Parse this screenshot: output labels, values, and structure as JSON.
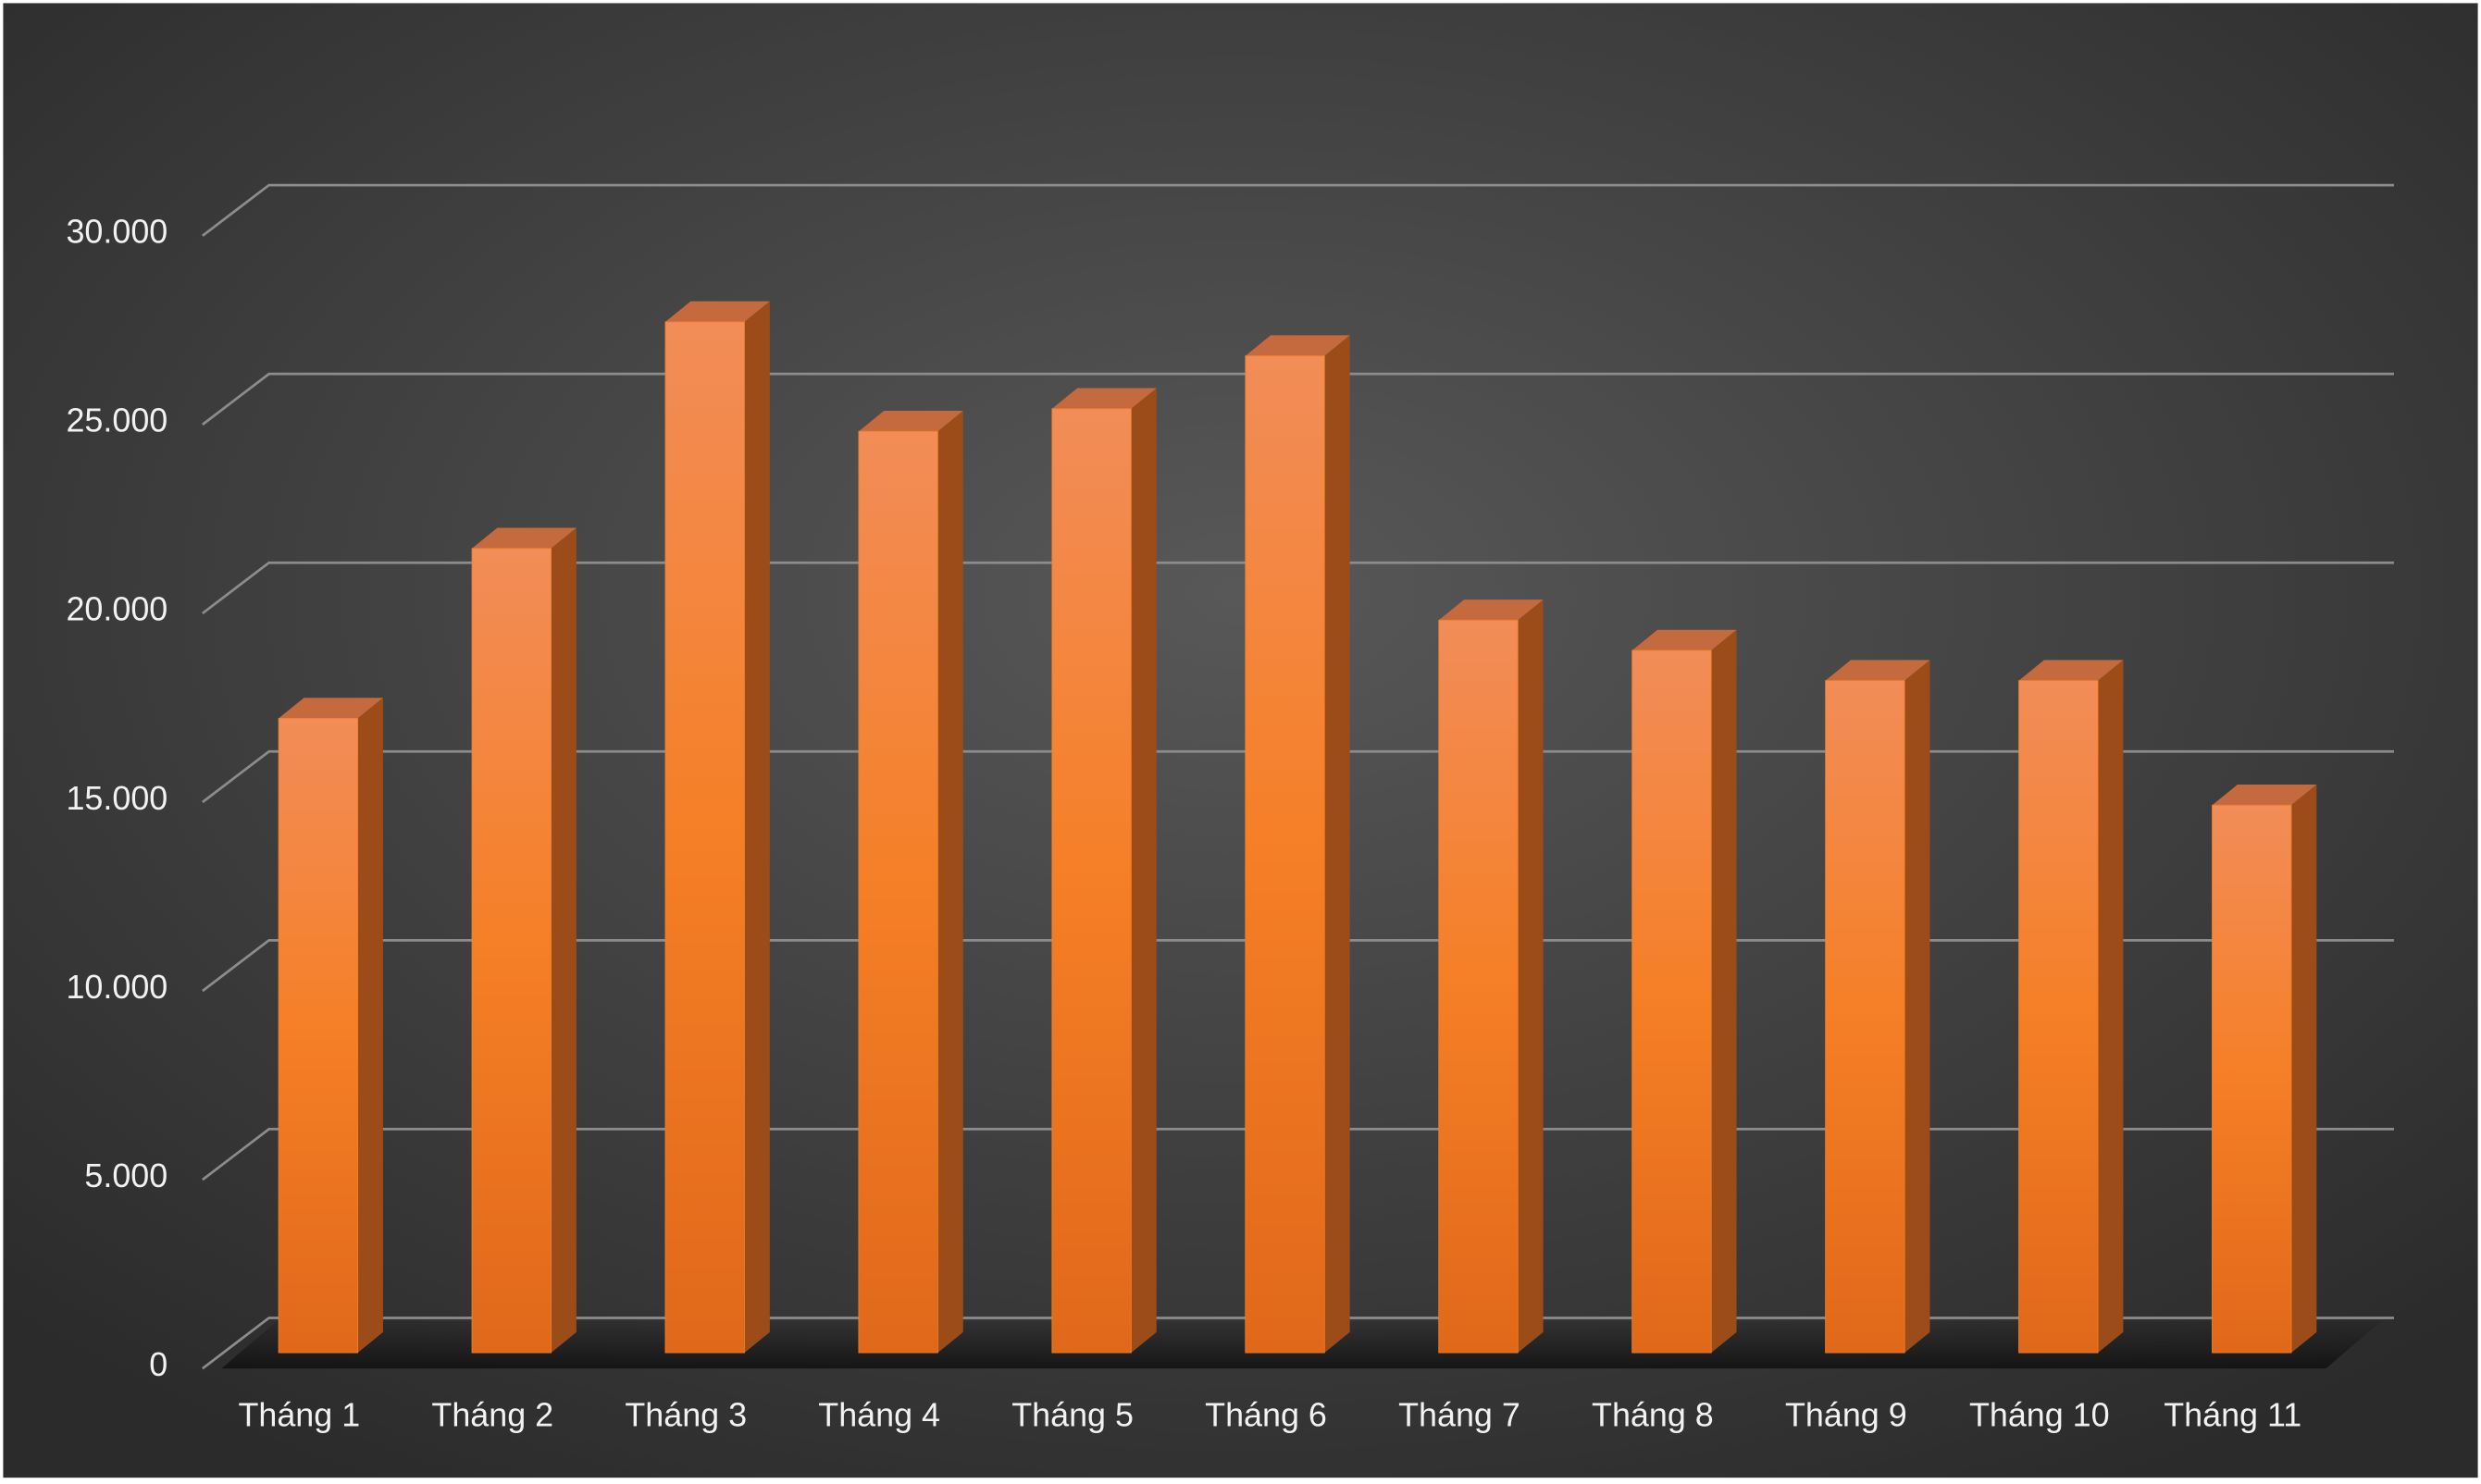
{
  "chart_data": {
    "type": "bar3d",
    "categories": [
      "Tháng 1",
      "Tháng 2",
      "Tháng 3",
      "Tháng 4",
      "Tháng 5",
      "Tháng 6",
      "Tháng 7",
      "Tháng 8",
      "Tháng 9",
      "Tháng 10",
      "Tháng 11"
    ],
    "values": [
      16800,
      21300,
      27300,
      24400,
      25000,
      26400,
      19400,
      18600,
      17800,
      17800,
      14500
    ],
    "color": "#f07f2a",
    "ylim": [
      0,
      30000
    ],
    "yticks": [
      0,
      {
        "value": 5000,
        "label": "5.000"
      },
      {
        "value": 10000,
        "label": "10.000"
      },
      {
        "value": 15000,
        "label": "15.000"
      },
      {
        "value": 20000,
        "label": "20.000"
      },
      {
        "value": 25000,
        "label": "25.000"
      },
      {
        "value": 30000,
        "label": "30.000"
      }
    ],
    "grid": true
  }
}
